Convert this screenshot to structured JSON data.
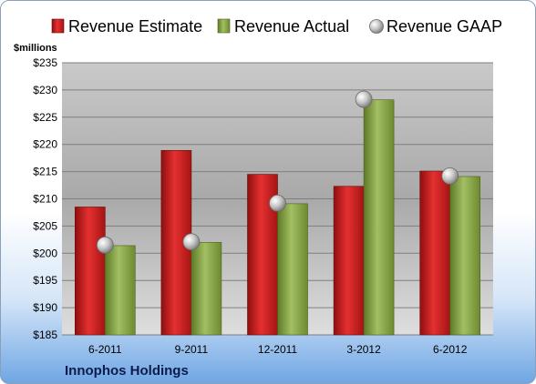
{
  "chart_data": {
    "type": "bar",
    "categories": [
      "6-2011",
      "9-2011",
      "12-2011",
      "3-2012",
      "6-2012"
    ],
    "series": [
      {
        "name": "Revenue Estimate",
        "type": "bar",
        "values": [
          208.5,
          218.9,
          214.5,
          212.3,
          215.1
        ],
        "color": "#cc1f1f"
      },
      {
        "name": "Revenue Actual",
        "type": "bar",
        "values": [
          201.4,
          202.0,
          209.1,
          228.2,
          214.1
        ],
        "color": "#7f9c3d"
      },
      {
        "name": "Revenue GAAP",
        "type": "scatter",
        "values": [
          201.5,
          202.1,
          209.2,
          228.3,
          214.2
        ],
        "color": "#b8b8b8"
      }
    ],
    "ylabel": "$millions",
    "ylim": [
      185,
      235
    ],
    "yticks": [
      185,
      190,
      195,
      200,
      205,
      210,
      215,
      220,
      225,
      230,
      235
    ],
    "ytick_labels": [
      "$185",
      "$190",
      "$195",
      "$200",
      "$205",
      "$210",
      "$215",
      "$220",
      "$225",
      "$230",
      "$235"
    ],
    "grid": true,
    "legend_position": "top"
  },
  "company_name": "Innophos Holdings",
  "colors": {
    "plot_background_top": "#b4b4b4",
    "plot_background_bottom": "#dcdcdc",
    "frame_gradient_bottom": "#6fa6e4"
  }
}
